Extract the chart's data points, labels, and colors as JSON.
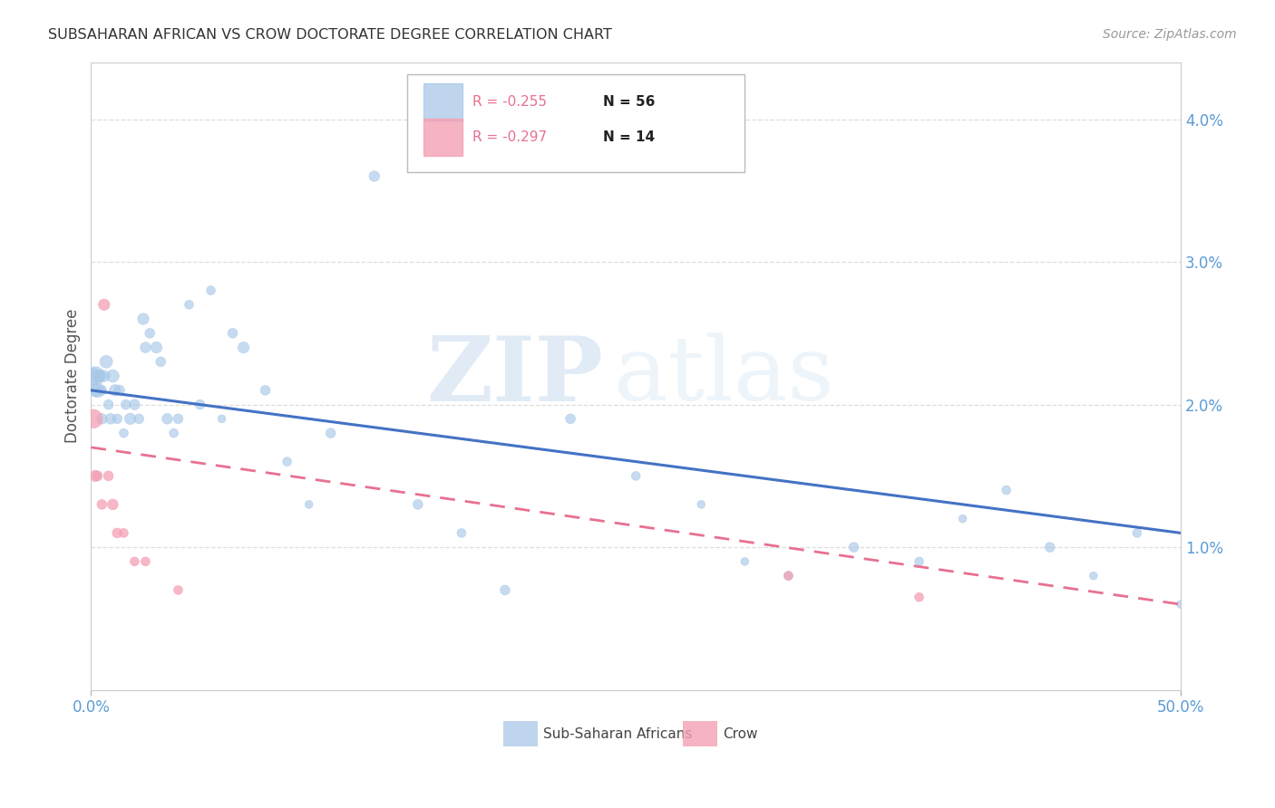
{
  "title": "SUBSAHARAN AFRICAN VS CROW DOCTORATE DEGREE CORRELATION CHART",
  "source": "Source: ZipAtlas.com",
  "ylabel": "Doctorate Degree",
  "xlim": [
    0.0,
    0.5
  ],
  "ylim": [
    0.0,
    0.044
  ],
  "watermark_zip": "ZIP",
  "watermark_atlas": "atlas",
  "legend_blue_label": "Sub-Saharan Africans",
  "legend_pink_label": "Crow",
  "legend_blue_r": "R = -0.255",
  "legend_blue_n": "N = 56",
  "legend_pink_r": "R = -0.297",
  "legend_pink_n": "N = 14",
  "blue_fill": "#A8C8E8",
  "pink_fill": "#F4A0B5",
  "blue_line_color": "#4472C4",
  "pink_line_color": "#E87090",
  "blue_scatter": {
    "x": [
      0.001,
      0.002,
      0.002,
      0.003,
      0.003,
      0.004,
      0.005,
      0.005,
      0.006,
      0.007,
      0.008,
      0.009,
      0.01,
      0.011,
      0.012,
      0.013,
      0.015,
      0.016,
      0.018,
      0.02,
      0.022,
      0.024,
      0.025,
      0.027,
      0.03,
      0.032,
      0.035,
      0.038,
      0.04,
      0.045,
      0.05,
      0.055,
      0.06,
      0.065,
      0.07,
      0.08,
      0.09,
      0.1,
      0.11,
      0.13,
      0.15,
      0.17,
      0.19,
      0.22,
      0.25,
      0.28,
      0.3,
      0.32,
      0.35,
      0.38,
      0.4,
      0.42,
      0.44,
      0.46,
      0.48,
      0.5
    ],
    "y": [
      0.022,
      0.021,
      0.022,
      0.022,
      0.021,
      0.022,
      0.019,
      0.021,
      0.022,
      0.023,
      0.02,
      0.019,
      0.022,
      0.021,
      0.019,
      0.021,
      0.018,
      0.02,
      0.019,
      0.02,
      0.019,
      0.026,
      0.024,
      0.025,
      0.024,
      0.023,
      0.019,
      0.018,
      0.019,
      0.027,
      0.02,
      0.028,
      0.019,
      0.025,
      0.024,
      0.021,
      0.016,
      0.013,
      0.018,
      0.036,
      0.013,
      0.011,
      0.007,
      0.019,
      0.015,
      0.013,
      0.009,
      0.008,
      0.01,
      0.009,
      0.012,
      0.014,
      0.01,
      0.008,
      0.011,
      0.006
    ],
    "sizes": [
      150,
      100,
      220,
      80,
      130,
      90,
      70,
      60,
      80,
      100,
      60,
      70,
      100,
      80,
      60,
      70,
      50,
      60,
      80,
      70,
      60,
      80,
      70,
      60,
      80,
      60,
      70,
      50,
      60,
      50,
      60,
      50,
      40,
      60,
      80,
      60,
      50,
      40,
      60,
      70,
      60,
      50,
      60,
      60,
      50,
      40,
      40,
      50,
      60,
      50,
      40,
      50,
      60,
      40,
      50,
      40
    ]
  },
  "pink_scatter": {
    "x": [
      0.001,
      0.002,
      0.003,
      0.005,
      0.006,
      0.008,
      0.01,
      0.012,
      0.015,
      0.02,
      0.025,
      0.04,
      0.32,
      0.38
    ],
    "y": [
      0.019,
      0.015,
      0.015,
      0.013,
      0.027,
      0.015,
      0.013,
      0.011,
      0.011,
      0.009,
      0.009,
      0.007,
      0.008,
      0.0065
    ],
    "sizes": [
      220,
      80,
      60,
      60,
      80,
      60,
      70,
      60,
      50,
      50,
      50,
      50,
      50,
      50
    ]
  },
  "blue_trend": [
    0.0,
    0.5,
    0.021,
    0.011
  ],
  "pink_trend": [
    0.0,
    0.5,
    0.017,
    0.006
  ],
  "xtick_positions": [
    0.0,
    0.5
  ],
  "xtick_labels": [
    "0.0%",
    "50.0%"
  ],
  "ytick_positions": [
    0.0,
    0.01,
    0.02,
    0.03,
    0.04
  ],
  "ytick_labels": [
    "",
    "1.0%",
    "2.0%",
    "3.0%",
    "4.0%"
  ],
  "tick_color": "#5B9BD5",
  "grid_color": "#DDDDDD",
  "title_color": "#333333",
  "label_color": "#555555"
}
